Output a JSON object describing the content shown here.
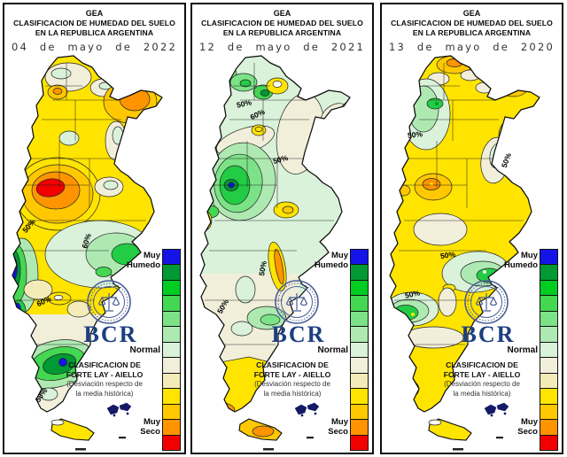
{
  "panels": [
    {
      "header": {
        "org": "GEA",
        "line1": "CLASIFICACION DE HUMEDAD DEL SUELO",
        "line2": "EN LA REPUBLICA ARGENTINA"
      },
      "date": "04 de mayo de 2022",
      "contours": [
        "50%",
        "60%",
        "60%",
        "50%"
      ]
    },
    {
      "header": {
        "org": "GEA",
        "line1": "CLASIFICACION DE HUMEDAD DEL SUELO",
        "line2": "EN LA REPUBLICA ARGENTINA"
      },
      "date": "12 de mayo de 2021",
      "contours": [
        "50%",
        "60%",
        "50%",
        "50%",
        "50%"
      ]
    },
    {
      "header": {
        "org": "GEA",
        "line1": "CLASIFICACION DE HUMEDAD DEL SUELO",
        "line2": "EN LA REPUBLICA ARGENTINA"
      },
      "date": "13 de mayo de 2020",
      "contours": [
        "50%",
        "50%",
        "50%",
        "50%"
      ]
    }
  ],
  "legend": {
    "colors": [
      "#1414e8",
      "#009933",
      "#00cc22",
      "#44d752",
      "#7ce287",
      "#aee9b2",
      "#d9f2d9",
      "#f1eeda",
      "#f4ecb8",
      "#ffe400",
      "#ffc800",
      "#ff9400",
      "#f20000"
    ],
    "muy_humedo_1": "Muy",
    "muy_humedo_2": "Humedo",
    "normal": "Normal",
    "muy_seco_1": "Muy",
    "muy_seco_2": "Seco"
  },
  "branding": {
    "bcr": "BCR",
    "class_1": "CLASIFICACION DE",
    "class_2": "FORTE LAY - AIELLO",
    "note_1": "(Desviación respecto de",
    "note_2": "la media histórica)"
  }
}
